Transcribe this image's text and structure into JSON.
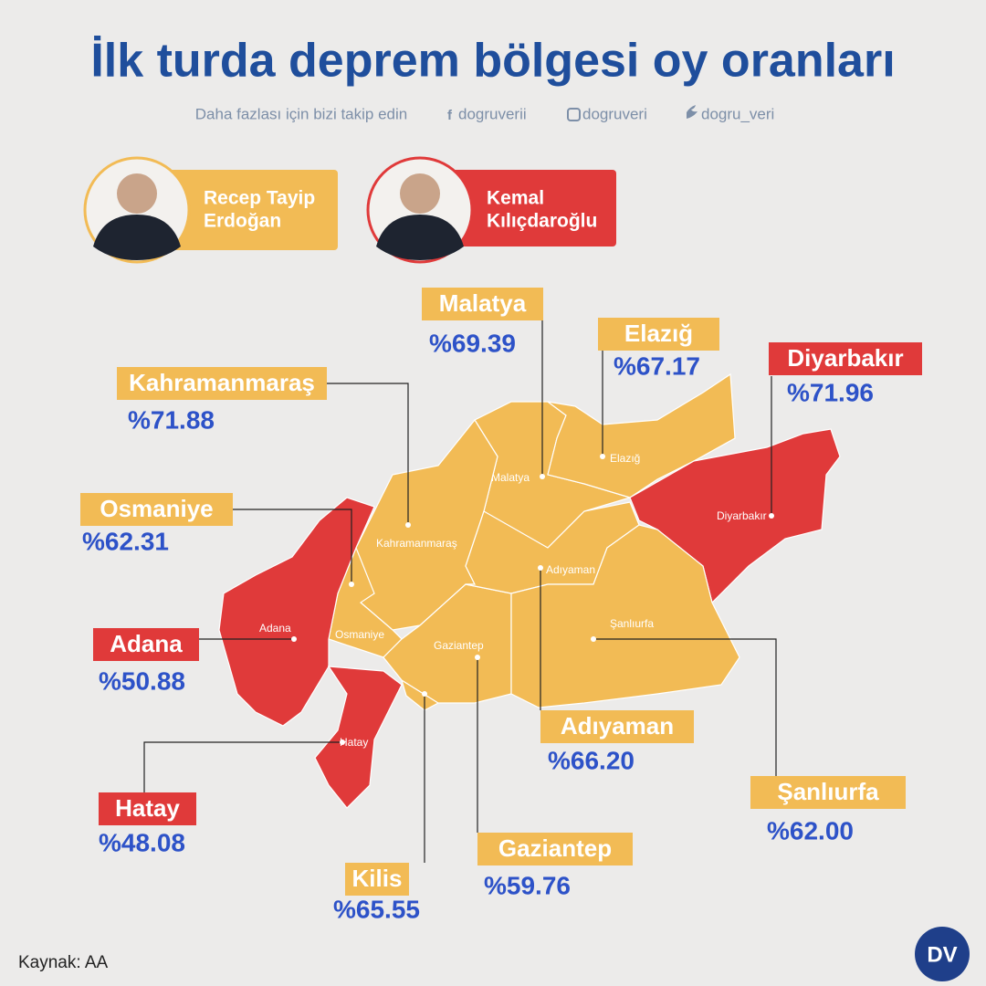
{
  "header": {
    "title": "İlk turda deprem bölgesi oy oranları",
    "subtitle": "Daha fazlası için bizi takip edin",
    "social": [
      "dogruverii",
      "dogruveri",
      "dogru_veri"
    ]
  },
  "candidates": [
    {
      "name": [
        "Recep Tayip",
        "Erdoğan"
      ],
      "color": "#f2bb55"
    },
    {
      "name": [
        "Kemal",
        "Kılıçdaroğlu"
      ],
      "color": "#e03a3a"
    }
  ],
  "provinces": [
    {
      "name": "Malatya",
      "value": "%69.39",
      "color": "#f2bb55"
    },
    {
      "name": "Elazığ",
      "value": "%67.17",
      "color": "#f2bb55"
    },
    {
      "name": "Diyarbakır",
      "value": "%71.96",
      "color": "#e03a3a"
    },
    {
      "name": "Kahramanmaraş",
      "value": "%71.88",
      "color": "#f2bb55"
    },
    {
      "name": "Osmaniye",
      "value": "%62.31",
      "color": "#f2bb55"
    },
    {
      "name": "Adana",
      "value": "%50.88",
      "color": "#e03a3a"
    },
    {
      "name": "Hatay",
      "value": "%48.08",
      "color": "#e03a3a"
    },
    {
      "name": "Kilis",
      "value": "%65.55",
      "color": "#f2bb55"
    },
    {
      "name": "Gaziantep",
      "value": "%59.76",
      "color": "#f2bb55"
    },
    {
      "name": "Adıyaman",
      "value": "%66.20",
      "color": "#f2bb55"
    },
    {
      "name": "Şanlıurfa",
      "value": "%62.00",
      "color": "#f2bb55"
    }
  ],
  "source": "Kaynak: AA",
  "logo": "DV"
}
